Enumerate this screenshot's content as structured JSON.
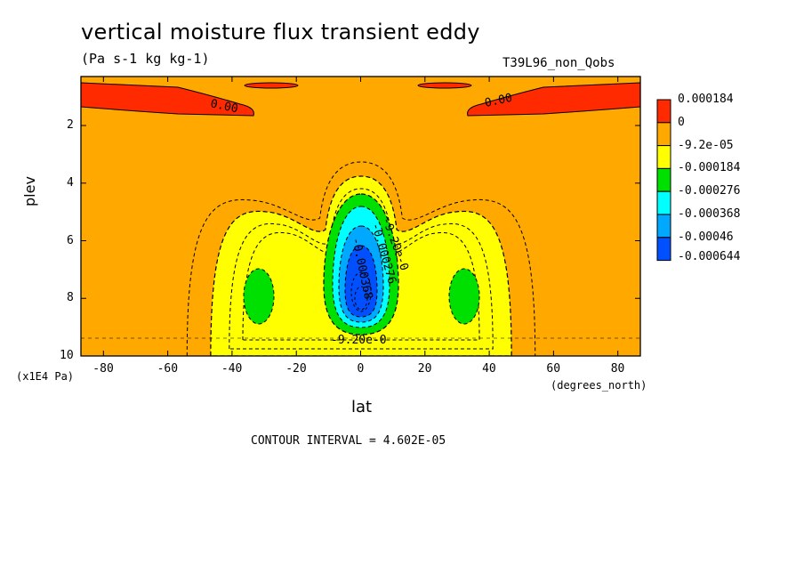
{
  "chart_data": {
    "type": "contour",
    "title": "vertical moisture flux transient eddy",
    "subtitle": "(Pa s-1 kg kg-1)",
    "dataset_label": "T39L96_non_Qobs",
    "xlabel": "lat",
    "ylabel": "plev",
    "x_unit": "(degrees_north)",
    "y_unit": "(x1E4 Pa)",
    "xlim": [
      -87,
      87
    ],
    "ylim": [
      10,
      0.3
    ],
    "y_inverted": true,
    "x_ticks": [
      "-80",
      "-60",
      "-40",
      "-20",
      "0",
      "20",
      "40",
      "60",
      "80"
    ],
    "y_ticks": [
      "2",
      "4",
      "6",
      "8",
      "10"
    ],
    "contour_interval_text": "CONTOUR INTERVAL = 4.602E-05",
    "colorbar": {
      "labels": [
        "0.000184",
        "0",
        "-9.2e-05",
        "-0.000184",
        "-0.000276",
        "-0.000368",
        "-0.00046",
        "-0.000644"
      ],
      "colors": [
        "#ff2a00",
        "#ffa800",
        "#ffff00",
        "#00e000",
        "#00ffff",
        "#00a8ff",
        "#0050ff"
      ]
    },
    "contour_labels": [
      "0.00",
      "0.00",
      "-9.20e-0",
      "-0.000276",
      "-9.20e-0",
      "-0.000368"
    ],
    "features": [
      {
        "name": "upper-level positive flux (south)",
        "lat_range": [
          -87,
          -33
        ],
        "plev_range": [
          0.3,
          1.3
        ],
        "sign": "positive"
      },
      {
        "name": "upper-level positive flux (north)",
        "lat_range": [
          33,
          87
        ],
        "plev_range": [
          0.3,
          1.3
        ],
        "sign": "positive"
      },
      {
        "name": "equatorial negative core",
        "center_lat": 0,
        "center_plev": 8.0,
        "min_value": -0.000644
      },
      {
        "name": "southern subtropical negative lobe",
        "center_lat": -33,
        "center_plev": 7.8,
        "min_value": -0.000276
      },
      {
        "name": "northern subtropical negative lobe",
        "center_lat": 33,
        "center_plev": 7.8,
        "min_value": -0.000276
      }
    ]
  }
}
